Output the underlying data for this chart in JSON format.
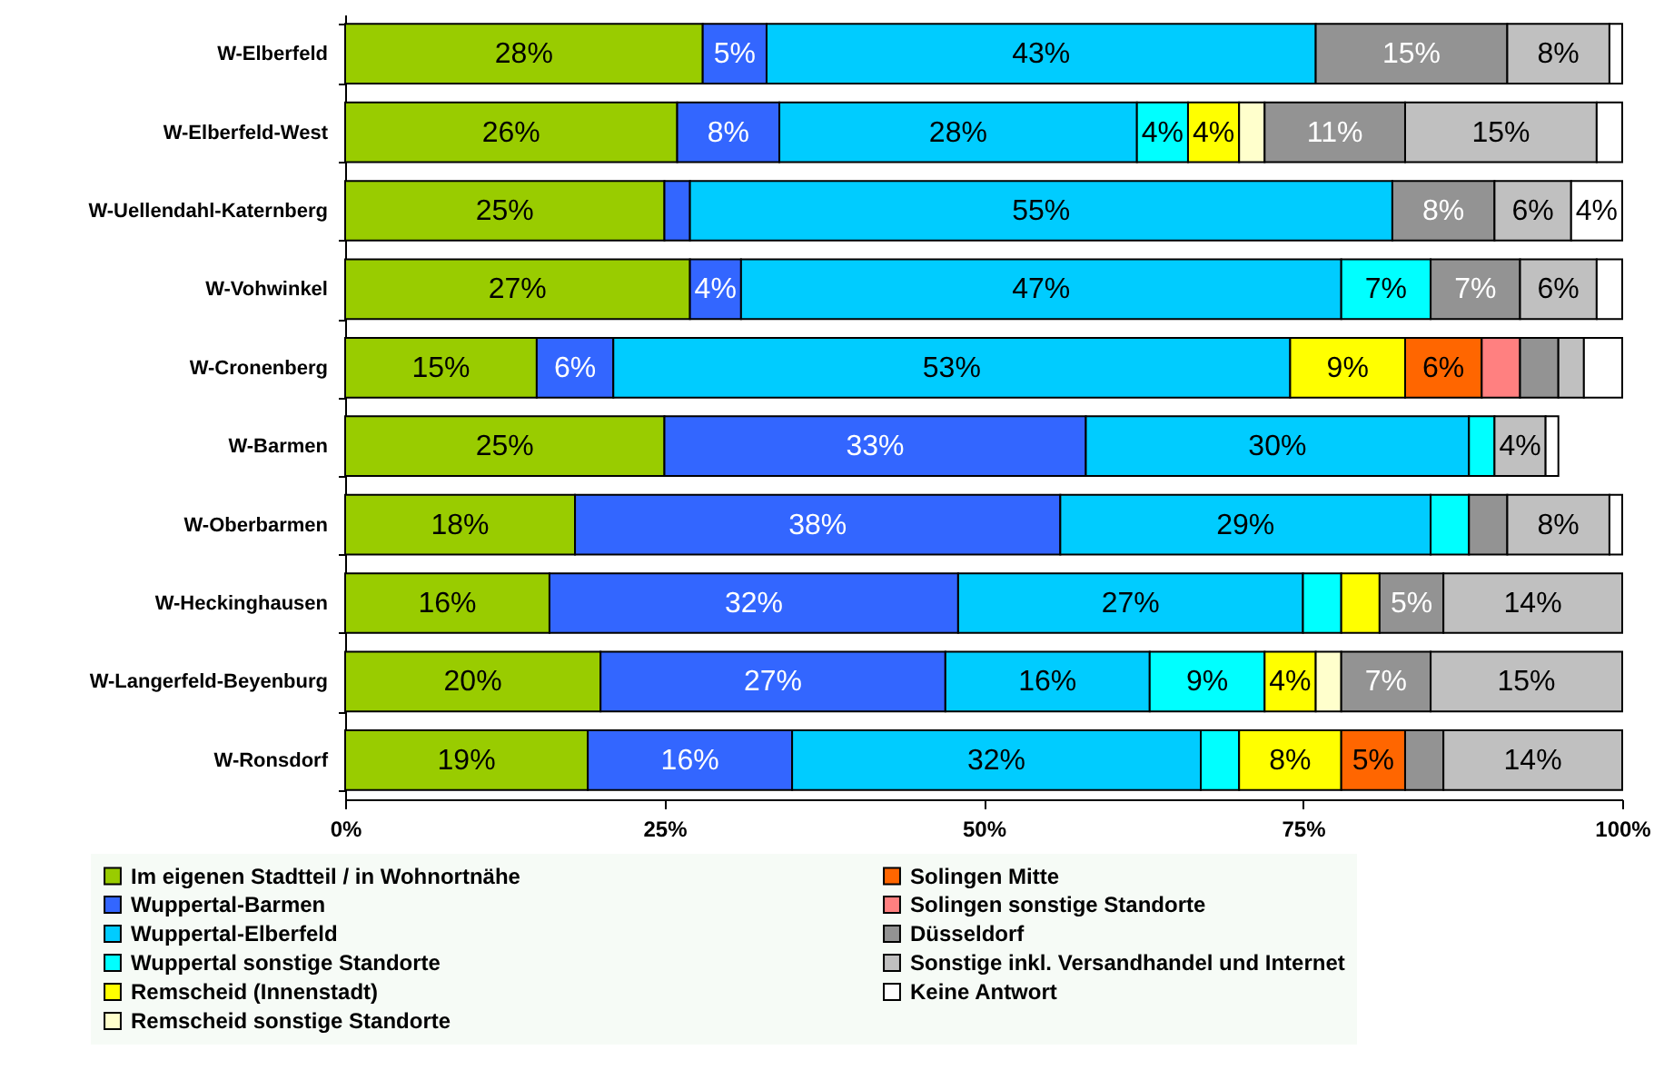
{
  "chart_data": {
    "type": "bar",
    "orientation": "horizontal",
    "stacked": true,
    "categories": [
      "W-Elberfeld",
      "W-Elberfeld-West",
      "W-Uellendahl-Katernberg",
      "W-Vohwinkel",
      "W-Cronenberg",
      "W-Barmen",
      "W-Oberbarmen",
      "W-Heckinghausen",
      "W-Langerfeld-Beyenburg",
      "W-Ronsdorf"
    ],
    "series": [
      {
        "name": "Im eigenen Stadtteil / in Wohnortnähe",
        "color": "#99cc00",
        "values": [
          28,
          26,
          25,
          27,
          15,
          25,
          18,
          16,
          20,
          19
        ],
        "value_labels": [
          "28%",
          "26%",
          "25%",
          "27%",
          "15%",
          "25%",
          "18%",
          "16%",
          "20%",
          "19%"
        ]
      },
      {
        "name": "Wuppertal-Barmen",
        "color": "#3366ff",
        "values": [
          5,
          8,
          2,
          4,
          6,
          33,
          38,
          32,
          27,
          16
        ],
        "value_labels": [
          "5%",
          "8%",
          null,
          "4%",
          "6%",
          "33%",
          "38%",
          "32%",
          "27%",
          "16%"
        ]
      },
      {
        "name": "Wuppertal-Elberfeld",
        "color": "#00ccff",
        "values": [
          43,
          28,
          55,
          47,
          53,
          30,
          29,
          27,
          16,
          32
        ],
        "value_labels": [
          "43%",
          "28%",
          "55%",
          "47%",
          "53%",
          "30%",
          "29%",
          "27%",
          "16%",
          "32%"
        ]
      },
      {
        "name": "Wuppertal sonstige Standorte",
        "color": "#00ffff",
        "values": [
          null,
          4,
          null,
          7,
          null,
          2,
          3,
          3,
          9,
          3
        ],
        "value_labels": [
          null,
          "4%",
          null,
          "7%",
          null,
          null,
          null,
          null,
          "9%",
          null
        ]
      },
      {
        "name": "Remscheid (Innenstadt)",
        "color": "#ffff00",
        "values": [
          null,
          4,
          null,
          null,
          9,
          null,
          null,
          3,
          4,
          8
        ],
        "value_labels": [
          null,
          "4%",
          null,
          null,
          "9%",
          null,
          null,
          null,
          "4%",
          "8%"
        ]
      },
      {
        "name": "Remscheid sonstige Standorte",
        "color": "#ffffcc",
        "values": [
          null,
          2,
          null,
          null,
          null,
          null,
          null,
          null,
          2,
          null
        ],
        "value_labels": [
          null,
          null,
          null,
          null,
          null,
          null,
          null,
          null,
          null,
          null
        ]
      },
      {
        "name": "Solingen Mitte",
        "color": "#ff6600",
        "values": [
          null,
          null,
          null,
          null,
          6,
          null,
          null,
          null,
          null,
          5
        ],
        "value_labels": [
          null,
          null,
          null,
          null,
          "6%",
          null,
          null,
          null,
          null,
          "5%"
        ]
      },
      {
        "name": "Solingen sonstige Standorte",
        "color": "#ff8080",
        "values": [
          null,
          null,
          null,
          null,
          3,
          null,
          null,
          null,
          null,
          null
        ],
        "value_labels": [
          null,
          null,
          null,
          null,
          null,
          null,
          null,
          null,
          null,
          null
        ]
      },
      {
        "name": "Düsseldorf",
        "color": "#939393",
        "values": [
          15,
          11,
          8,
          7,
          3,
          null,
          3,
          5,
          7,
          3
        ],
        "value_labels": [
          "15%",
          "11%",
          "8%",
          "7%",
          null,
          null,
          null,
          "5%",
          "7%",
          null
        ]
      },
      {
        "name": "Sonstige inkl. Versandhandel und Internet",
        "color": "#c0c0c0",
        "values": [
          8,
          15,
          6,
          6,
          2,
          4,
          8,
          14,
          15,
          14
        ],
        "value_labels": [
          "8%",
          "15%",
          "6%",
          "6%",
          null,
          "4%",
          "8%",
          "14%",
          "15%",
          "14%"
        ]
      },
      {
        "name": "Keine Antwort",
        "color": "#ffffff",
        "values": [
          1,
          2,
          4,
          2,
          3,
          1,
          1,
          null,
          null,
          null
        ],
        "value_labels": [
          null,
          null,
          "4%",
          null,
          null,
          null,
          null,
          null,
          null,
          null
        ]
      }
    ],
    "xlim": [
      0,
      100
    ],
    "xticks": [
      {
        "value": 0,
        "label": "0%"
      },
      {
        "value": 25,
        "label": "25%"
      },
      {
        "value": 50,
        "label": "50%"
      },
      {
        "value": 75,
        "label": "75%"
      },
      {
        "value": 100,
        "label": "100%"
      }
    ],
    "grid": false,
    "legend": "bottom"
  }
}
